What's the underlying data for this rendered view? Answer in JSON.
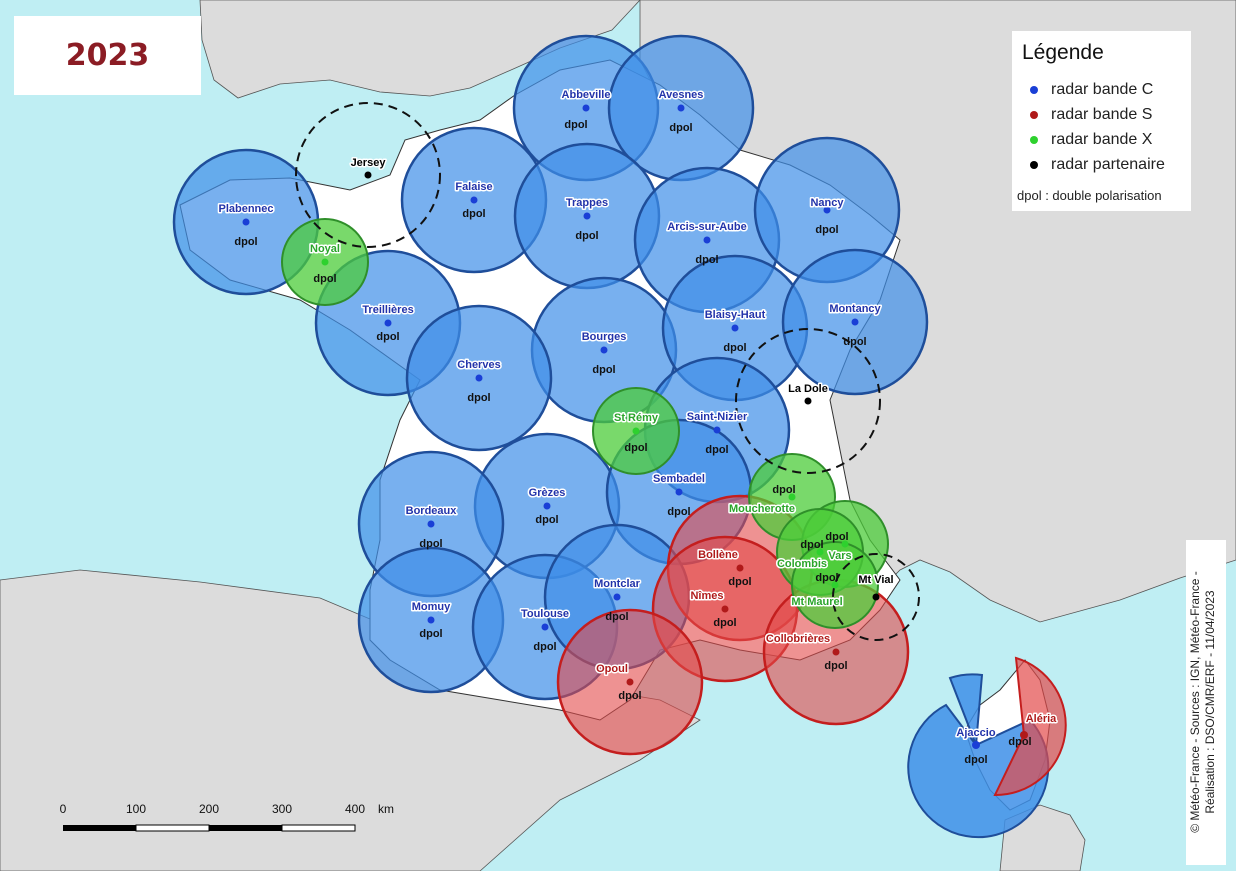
{
  "header": {
    "year": "2023"
  },
  "legend": {
    "title": "Légende",
    "items": [
      {
        "label": "radar bande C",
        "color": "#1a3fd6"
      },
      {
        "label": "radar bande S",
        "color": "#b01a1a"
      },
      {
        "label": "radar bande X",
        "color": "#2ed12e"
      },
      {
        "label": "radar partenaire",
        "color": "#000000"
      }
    ],
    "note": "dpol : double polarisation"
  },
  "scale_bar": {
    "ticks": [
      "0",
      "100",
      "200",
      "300",
      "400"
    ],
    "unit": "km"
  },
  "credit": {
    "line1": "© Météo-France - Sources : IGN, Météo-France -",
    "line2": "Réalisation : DSO/CMR/ERF - 11/04/2023"
  },
  "colors": {
    "sea": "#bfeef3",
    "land_foreign": "#dcdcdc",
    "france": "#ffffff",
    "band_c_fill": "#3e8fe8",
    "band_c_stroke": "#1f4e9a",
    "band_s_fill": "#e24a4a",
    "band_s_stroke": "#c41e1e",
    "band_x_fill": "#4ccc3a",
    "band_x_stroke": "#2f8f2a",
    "label_c": "#2233aa",
    "label_s": "#b01a1a",
    "label_x": "#2aa52a",
    "label_p": "#000000"
  },
  "dpol_text": "dpol",
  "radars": [
    {
      "name": "Abbeville",
      "band": "C",
      "dpol": true
    },
    {
      "name": "Avesnes",
      "band": "C",
      "dpol": true
    },
    {
      "name": "Plabennec",
      "band": "C",
      "dpol": true
    },
    {
      "name": "Falaise",
      "band": "C",
      "dpol": true
    },
    {
      "name": "Trappes",
      "band": "C",
      "dpol": true
    },
    {
      "name": "Arcis-sur-Aube",
      "band": "C",
      "dpol": true
    },
    {
      "name": "Nancy",
      "band": "C",
      "dpol": true
    },
    {
      "name": "Treillières",
      "band": "C",
      "dpol": true
    },
    {
      "name": "Bourges",
      "band": "C",
      "dpol": true
    },
    {
      "name": "Blaisy-Haut",
      "band": "C",
      "dpol": true
    },
    {
      "name": "Montancy",
      "band": "C",
      "dpol": true
    },
    {
      "name": "Cherves",
      "band": "C",
      "dpol": true
    },
    {
      "name": "Saint-Nizier",
      "band": "C",
      "dpol": true
    },
    {
      "name": "Grèzes",
      "band": "C",
      "dpol": true
    },
    {
      "name": "Sembadel",
      "band": "C",
      "dpol": true
    },
    {
      "name": "Bordeaux",
      "band": "C",
      "dpol": true
    },
    {
      "name": "Momuy",
      "band": "C",
      "dpol": true
    },
    {
      "name": "Toulouse",
      "band": "C",
      "dpol": true
    },
    {
      "name": "Montclar",
      "band": "C",
      "dpol": true
    },
    {
      "name": "Ajaccio",
      "band": "C",
      "dpol": true
    },
    {
      "name": "Bollène",
      "band": "S",
      "dpol": true
    },
    {
      "name": "Nîmes",
      "band": "S",
      "dpol": true
    },
    {
      "name": "Opoul",
      "band": "S",
      "dpol": true
    },
    {
      "name": "Collobrières",
      "band": "S",
      "dpol": true
    },
    {
      "name": "Aléria",
      "band": "S",
      "dpol": true
    },
    {
      "name": "Noyal",
      "band": "X",
      "dpol": true
    },
    {
      "name": "St Rémy",
      "band": "X",
      "dpol": true
    },
    {
      "name": "Moucherotte",
      "band": "X",
      "dpol": true
    },
    {
      "name": "Vars",
      "band": "X",
      "dpol": true
    },
    {
      "name": "Colombis",
      "band": "X",
      "dpol": true
    },
    {
      "name": "Mt Maurel",
      "band": "X",
      "dpol": true
    },
    {
      "name": "Jersey",
      "band": "P",
      "dpol": false
    },
    {
      "name": "La Dole",
      "band": "P",
      "dpol": false
    },
    {
      "name": "Mt Vial",
      "band": "P",
      "dpol": false
    }
  ]
}
